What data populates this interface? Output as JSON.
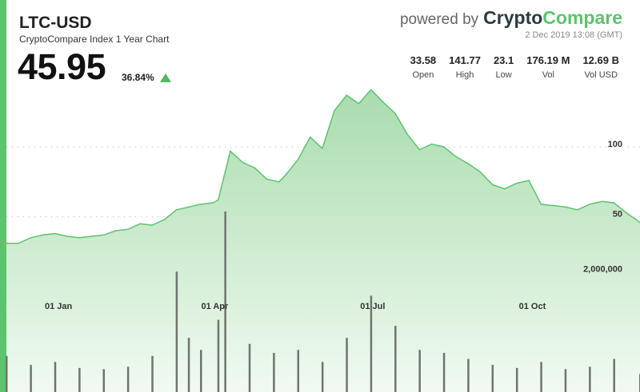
{
  "header": {
    "title": "LTC-USD",
    "subtitle": "CryptoCompare Index 1 Year Chart",
    "price": "45.95",
    "change": "36.84%",
    "change_direction": "up",
    "powered_prefix": "powered by",
    "brand_part1": "Crypto",
    "brand_part2": "Compare",
    "timestamp": "2 Dec 2019 13:08 (GMT)"
  },
  "stats": [
    {
      "value": "33.58",
      "label": "Open"
    },
    {
      "value": "141.77",
      "label": "High"
    },
    {
      "value": "23.1",
      "label": "Low"
    },
    {
      "value": "176.19 M",
      "label": "Vol"
    },
    {
      "value": "12.69 B",
      "label": "Vol USD"
    }
  ],
  "colors": {
    "accent": "#5cc36e",
    "line": "#5cc36e",
    "area_top": "#a9dcae",
    "area_bottom": "#f1faf1",
    "volume_bar": "#6e756e",
    "brand_dark": "#2b3a42"
  },
  "chart_data": {
    "type": "area",
    "title": "LTC-USD",
    "x_tick_labels": [
      "01 Jan",
      "01 Apr",
      "01 Jul",
      "01 Oct"
    ],
    "x_tick_dates": [
      "2019-01-01",
      "2019-04-01",
      "2019-07-01",
      "2019-10-01"
    ],
    "x_range": [
      "2018-12-02",
      "2019-12-02"
    ],
    "y_tick_labels": [
      "100",
      "50"
    ],
    "y_ticks": [
      100,
      50
    ],
    "ylim": [
      8,
      148
    ],
    "grid": "dotted horizontal at 50 and 100",
    "price_series": {
      "name": "",
      "x": [
        "2018-12-02",
        "2018-12-09",
        "2018-12-16",
        "2018-12-23",
        "2018-12-30",
        "2019-01-06",
        "2019-01-13",
        "2019-01-20",
        "2019-01-27",
        "2019-02-03",
        "2019-02-10",
        "2019-02-17",
        "2019-02-24",
        "2019-03-03",
        "2019-03-10",
        "2019-03-17",
        "2019-03-24",
        "2019-03-31",
        "2019-04-03",
        "2019-04-10",
        "2019-04-17",
        "2019-04-24",
        "2019-05-01",
        "2019-05-08",
        "2019-05-12",
        "2019-05-19",
        "2019-05-26",
        "2019-06-02",
        "2019-06-09",
        "2019-06-16",
        "2019-06-23",
        "2019-06-30",
        "2019-07-07",
        "2019-07-14",
        "2019-07-21",
        "2019-07-28",
        "2019-08-04",
        "2019-08-11",
        "2019-08-18",
        "2019-08-25",
        "2019-09-01",
        "2019-09-08",
        "2019-09-15",
        "2019-09-22",
        "2019-09-29",
        "2019-10-06",
        "2019-10-13",
        "2019-10-20",
        "2019-10-27",
        "2019-11-03",
        "2019-11-10",
        "2019-11-17",
        "2019-11-24",
        "2019-12-02"
      ],
      "values": [
        31,
        31,
        35,
        37,
        38,
        36,
        35,
        36,
        37,
        40,
        41,
        45,
        44,
        48,
        55,
        57,
        59,
        60,
        62,
        97,
        89,
        85,
        77,
        75,
        80,
        91,
        107,
        99,
        126,
        137,
        131,
        141,
        132,
        124,
        109,
        98,
        102,
        100,
        93,
        88,
        82,
        73,
        70,
        74,
        76,
        59,
        58,
        57,
        55,
        59,
        61,
        60,
        53,
        46
      ]
    },
    "volume_series": {
      "name": "",
      "y_tick_label": "2,000,000",
      "y_tick": 2000000,
      "ylim": [
        0,
        2800000
      ],
      "x": [
        "2018-12-02",
        "2018-12-16",
        "2018-12-30",
        "2019-01-13",
        "2019-01-27",
        "2019-02-10",
        "2019-02-24",
        "2019-03-10",
        "2019-03-17",
        "2019-03-24",
        "2019-04-03",
        "2019-04-07",
        "2019-04-21",
        "2019-05-05",
        "2019-05-19",
        "2019-06-02",
        "2019-06-16",
        "2019-06-30",
        "2019-07-14",
        "2019-07-28",
        "2019-08-11",
        "2019-08-25",
        "2019-09-08",
        "2019-09-22",
        "2019-10-06",
        "2019-10-20",
        "2019-11-03",
        "2019-11-17",
        "2019-12-02"
      ],
      "values": [
        600000,
        450000,
        500000,
        400000,
        380000,
        420000,
        600000,
        2000000,
        900000,
        700000,
        1200000,
        3000000,
        800000,
        650000,
        700000,
        500000,
        900000,
        1600000,
        1100000,
        700000,
        650000,
        550000,
        450000,
        400000,
        500000,
        380000,
        420000,
        550000,
        300000
      ]
    }
  }
}
